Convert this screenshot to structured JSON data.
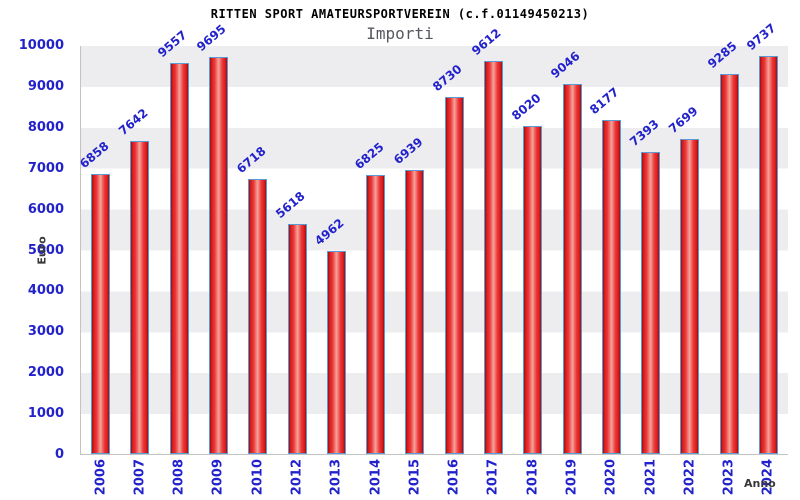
{
  "header": {
    "title": "RITTEN SPORT AMATEURSPORTVEREIN (c.f.01149450213)",
    "subtitle": "Importi"
  },
  "chart_data": {
    "type": "bar",
    "title": "RITTEN SPORT AMATEURSPORTVEREIN (c.f.01149450213)",
    "subtitle": "Importi",
    "xlabel": "Anno",
    "ylabel": "Euro",
    "categories": [
      "2006",
      "2007",
      "2008",
      "2009",
      "2010",
      "2012",
      "2013",
      "2014",
      "2015",
      "2016",
      "2017",
      "2018",
      "2019",
      "2020",
      "2021",
      "2022",
      "2023",
      "2024"
    ],
    "values": [
      6858,
      7642,
      9557,
      9695,
      6718,
      5618,
      4962,
      6825,
      6939,
      8730,
      9612,
      8020,
      9046,
      8177,
      7393,
      7699,
      9285,
      9737
    ],
    "ylim": [
      0,
      10000
    ],
    "ytick_step": 1000,
    "ytick_labels": [
      "0",
      "1000",
      "2000",
      "3000",
      "4000",
      "5000",
      "6000",
      "7000",
      "8000",
      "9000",
      "10000"
    ],
    "grid": "alternating-horizontal-bands",
    "legend": "none",
    "value_labels_rotation_deg": -40,
    "category_labels_rotation_deg": -90,
    "colors": {
      "bar_fill_edge": "#9a0f0f",
      "bar_fill_main": "#ec3b3b",
      "bar_fill_highlight": "#f4a49c",
      "bar_border": "#5b9bd5",
      "tick_and_value_text": "#2222cc",
      "axis_title_text": "#38383a",
      "band_gray": "#ededef",
      "band_white": "#ffffff",
      "title_text": "#000000",
      "subtitle_text": "#55585e"
    }
  }
}
